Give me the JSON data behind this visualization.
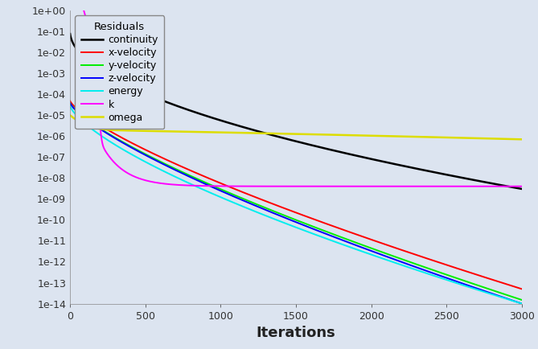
{
  "xlabel": "Iterations",
  "legend_title": "Residuals",
  "xlim": [
    0,
    3000
  ],
  "ylim_log": [
    -14,
    0
  ],
  "bg_color": "#c8d0de",
  "bg_color2": "#dce4f0",
  "legend_facecolor": "#dce4f0",
  "series_names": [
    "continuity",
    "x-velocity",
    "y-velocity",
    "z-velocity",
    "energy",
    "k",
    "omega"
  ],
  "colors": {
    "continuity": "#000000",
    "x-velocity": "#ff0000",
    "y-velocity": "#00ee00",
    "z-velocity": "#0000ff",
    "energy": "#00eeee",
    "k": "#ff00ff",
    "omega": "#dddd00"
  },
  "linewidths": {
    "continuity": 1.8,
    "x-velocity": 1.4,
    "y-velocity": 1.4,
    "z-velocity": 1.4,
    "energy": 1.4,
    "k": 1.4,
    "omega": 1.8
  }
}
